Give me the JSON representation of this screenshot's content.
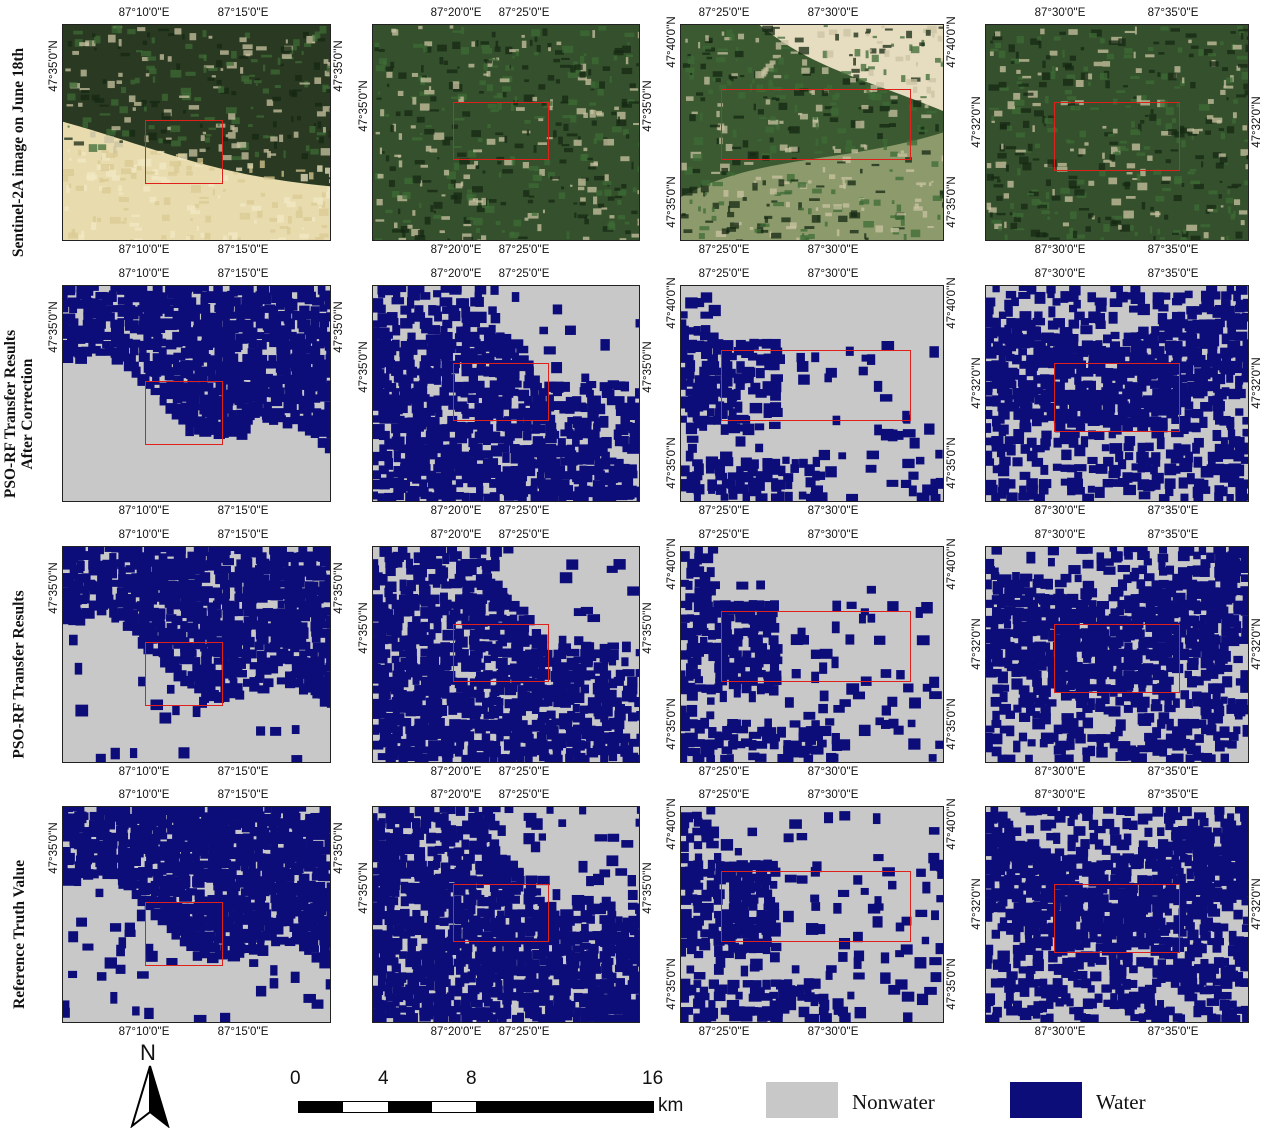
{
  "row_labels": [
    "Sentinel-2A image on June 18th",
    "PSO-RF Transfer Results\nAfter Correction",
    "PSO-RF Transfer Results",
    "Reference Truth Value"
  ],
  "columns": [
    {
      "top_ticks": [
        "87°10'0''E",
        "87°15'0''E"
      ],
      "bottom_ticks": [
        "87°10'0''E",
        "87°15'0''E"
      ],
      "left_ticks": [
        "47°35'0''N"
      ],
      "right_ticks": [
        "47°35'0''N"
      ]
    },
    {
      "top_ticks": [
        "87°20'0''E",
        "87°25'0''E"
      ],
      "bottom_ticks": [
        "87°20'0''E",
        "87°25'0''E"
      ],
      "left_ticks": [
        "47°35'0''N"
      ],
      "right_ticks": [
        "47°35'0''N"
      ]
    },
    {
      "top_ticks": [
        "87°25'0''E",
        "87°30'0''E"
      ],
      "bottom_ticks": [
        "87°25'0''E",
        "87°30'0''E"
      ],
      "left_ticks": [
        "47°40'0''N",
        "47°35'0''N"
      ],
      "right_ticks": [
        "47°40'0''N",
        "47°35'0''N"
      ]
    },
    {
      "top_ticks": [
        "87°30'0''E",
        "87°35'0''E"
      ],
      "bottom_ticks": [
        "87°30'0''E",
        "87°35'0''E"
      ],
      "left_ticks": [
        "47°32'0''N"
      ],
      "right_ticks": [
        "47°32'0''N"
      ]
    }
  ],
  "north_arrow": {
    "label": "N",
    "icon": "north-arrow-icon"
  },
  "scale_bar": {
    "labels": [
      "0",
      "4",
      "8",
      "16"
    ],
    "unit": "km"
  },
  "legend": [
    {
      "label": "Nonwater",
      "color": "#c8c8c8"
    },
    {
      "label": "Water",
      "color": "#0d0d7a"
    }
  ],
  "colors": {
    "water": "#0d0d7a",
    "nonwater": "#c8c8c8",
    "roi_box": "#e0201b",
    "vegetation_dark": "#1f3a1c",
    "vegetation_light": "#3e6b35",
    "bare_soil": "#e8dcae"
  }
}
